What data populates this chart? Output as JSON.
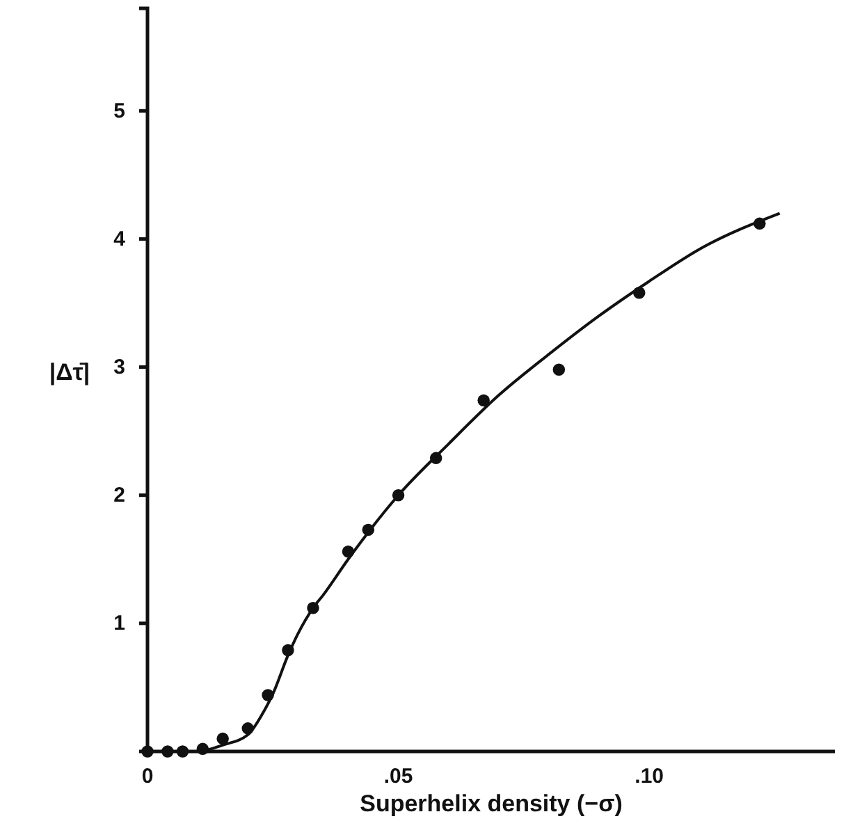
{
  "chart_data": {
    "type": "scatter",
    "xlabel": "Superhelix density (−σ)",
    "ylabel": "|Δτ̄|",
    "xlim": [
      0,
      0.137
    ],
    "ylim": [
      0,
      5.8
    ],
    "xticks": [
      0,
      {
        "value": 0.05,
        "label": ".05"
      },
      {
        "value": 0.1,
        "label": ".10"
      }
    ],
    "yticks": [
      1,
      2,
      3,
      4,
      5
    ],
    "grid": false,
    "series": [
      {
        "marker": "circle",
        "color": "#111111",
        "x": [
          0,
          0.004,
          0.007,
          0.011,
          0.015,
          0.02,
          0.024,
          0.028,
          0.033,
          0.04,
          0.044,
          0.05,
          0.0575,
          0.067,
          0.082,
          0.098,
          0.122
        ],
        "values": [
          0,
          0,
          0,
          0.02,
          0.1,
          0.18,
          0.44,
          0.79,
          1.12,
          1.56,
          1.73,
          2.0,
          2.29,
          2.74,
          2.98,
          3.58,
          4.12
        ]
      },
      {
        "type": "line",
        "marker": "none",
        "line_style": "solid",
        "color": "#111111",
        "x": [
          0,
          0.01,
          0.015,
          0.02,
          0.023,
          0.025,
          0.028,
          0.03,
          0.033,
          0.035,
          0.04,
          0.05,
          0.06,
          0.07,
          0.08,
          0.09,
          0.1,
          0.11,
          0.126
        ],
        "values": [
          0,
          0,
          0.05,
          0.13,
          0.3,
          0.45,
          0.75,
          0.92,
          1.12,
          1.22,
          1.5,
          2.0,
          2.4,
          2.78,
          3.1,
          3.4,
          3.67,
          3.92,
          4.2
        ]
      }
    ]
  }
}
